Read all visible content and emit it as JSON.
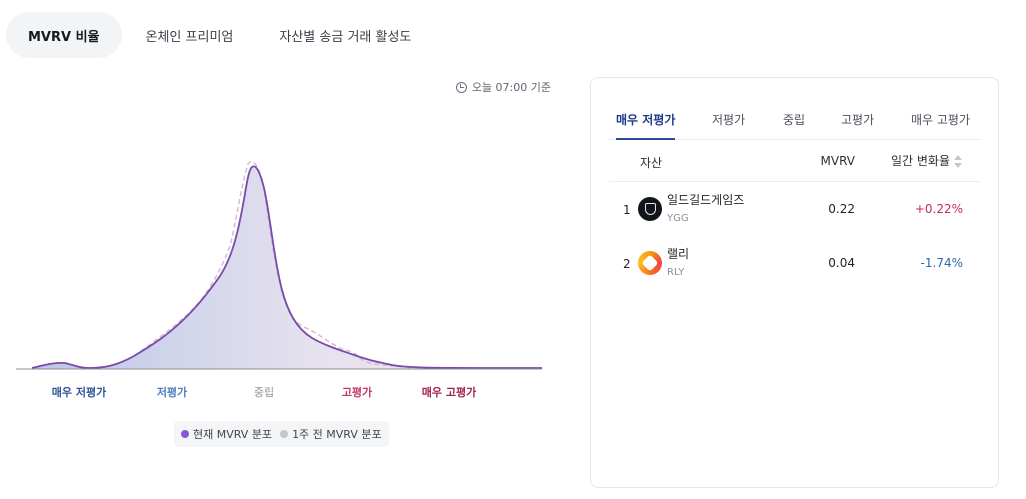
{
  "top_tabs": [
    {
      "label": "MVRV 비율",
      "active": true
    },
    {
      "label": "온체인 프리미엄",
      "active": false
    },
    {
      "label": "자산별 송금 거래 활성도",
      "active": false
    }
  ],
  "timestamp": "오늘 07:00 기준",
  "distribution": {
    "zones": [
      "매우 저평가",
      "저평가",
      "중립",
      "고평가",
      "매우 고평가"
    ],
    "zone_colors": [
      "#2f5597",
      "#4d7fc2",
      "#8e9399",
      "#c23b66",
      "#a32352"
    ],
    "legend": [
      {
        "label": "현재 MVRV 분포",
        "color": "#8a55d8"
      },
      {
        "label": "1주 전 MVRV 분포",
        "color": "#c3c6cc"
      }
    ]
  },
  "panel": {
    "tabs": [
      "매우 저평가",
      "저평가",
      "중립",
      "고평가",
      "매우 고평가"
    ],
    "columns": {
      "asset": "자산",
      "mvrv": "MVRV",
      "change": "일간 변화율"
    },
    "rows": [
      {
        "rank": "1",
        "name": "일드길드게임즈",
        "ticker": "YGG",
        "mvrv": "0.22",
        "change": "+0.22%",
        "change_color": "#c92a4e"
      },
      {
        "rank": "2",
        "name": "랠리",
        "ticker": "RLY",
        "mvrv": "0.04",
        "change": "-1.74%",
        "change_color": "#2a6aa8"
      }
    ]
  },
  "colors": {
    "current_line": "#7a4aa8",
    "fill_left": "#8ea2d8",
    "fill_right": "#ead7e4",
    "previous_line": "#d2b7cf",
    "positive": "#c92a4e",
    "negative": "#2a6aa8"
  }
}
